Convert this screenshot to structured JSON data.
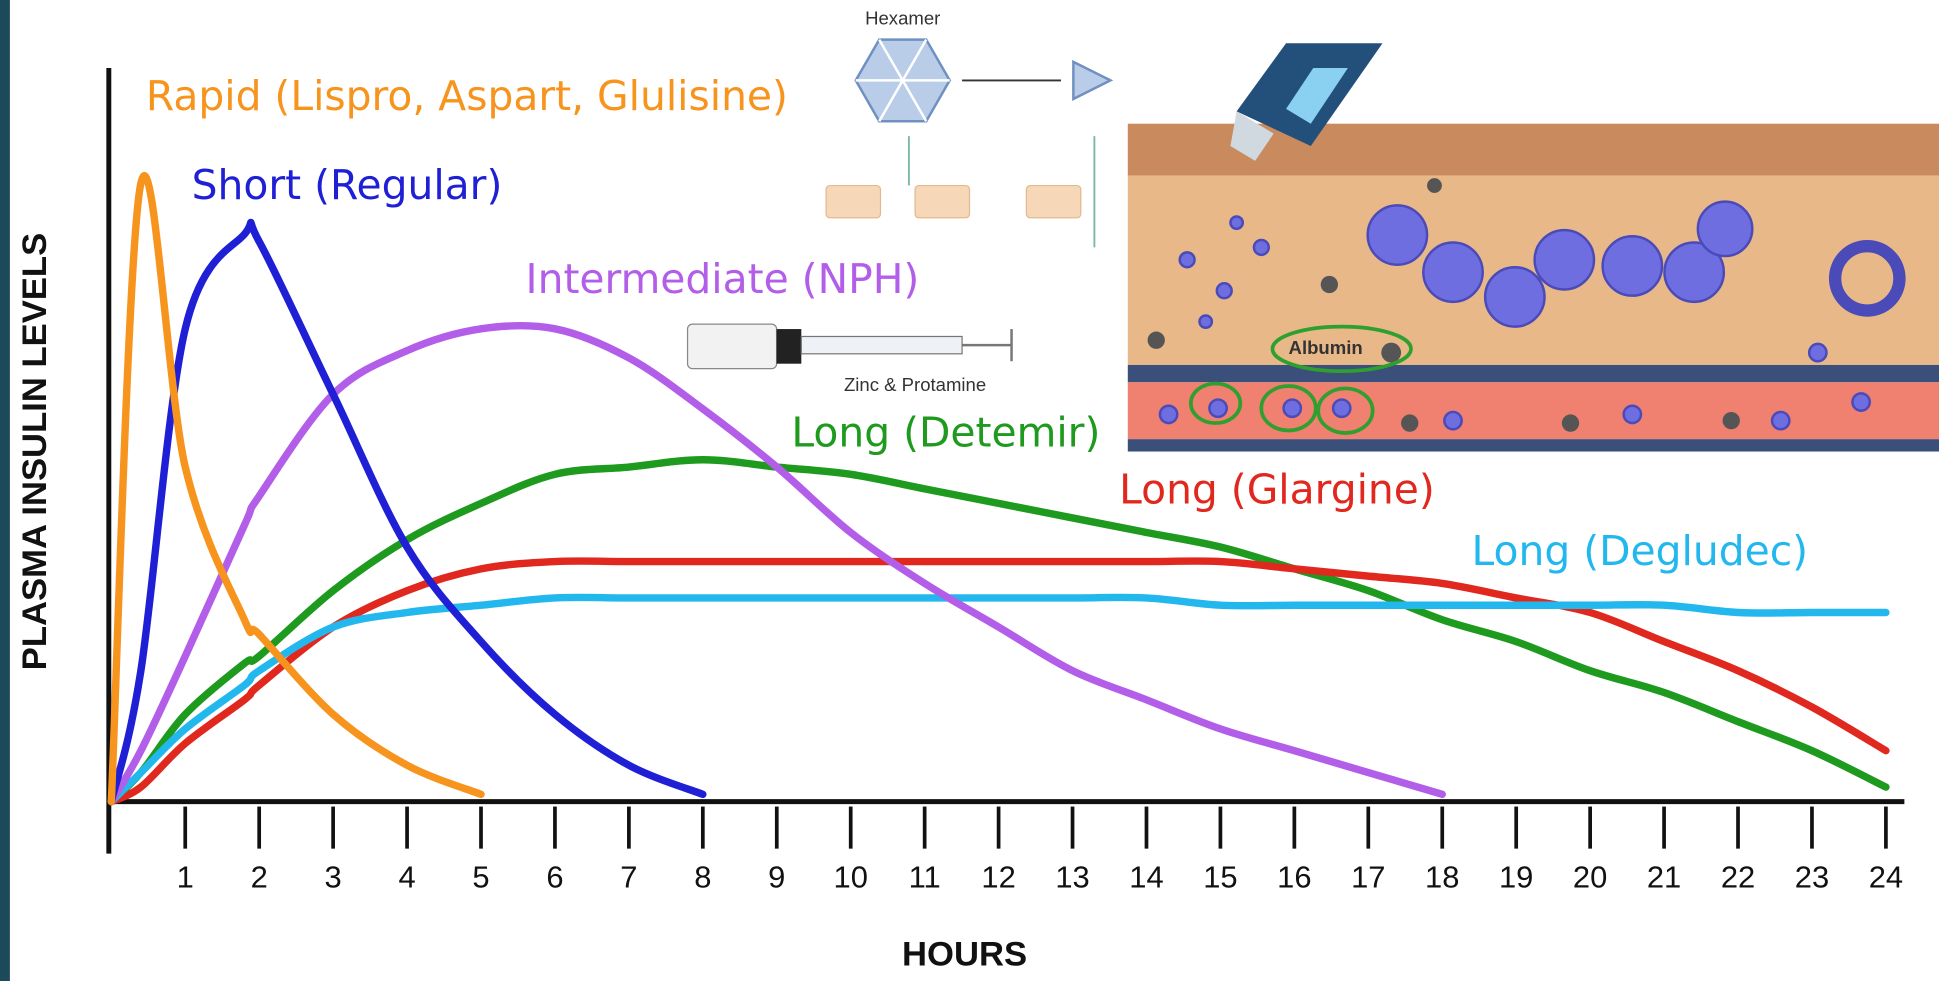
{
  "chart_data": {
    "type": "line",
    "x_label": "HOURS",
    "y_label": "PLASMA INSULIN LEVELS",
    "x": [
      0,
      0.4,
      1,
      1.8,
      2,
      3,
      4,
      5,
      6,
      7,
      8,
      9,
      10,
      11,
      12,
      13,
      14,
      15,
      16,
      17,
      18,
      19,
      20,
      21,
      22,
      23,
      24
    ],
    "series": [
      {
        "name": "Rapid (Lispro, Aspart, Glulisine)",
        "color": "#f7941d",
        "values": [
          0,
          85,
          46,
          25,
          23,
          12,
          5,
          1,
          null,
          null,
          null,
          null,
          null,
          null,
          null,
          null,
          null,
          null,
          null,
          null,
          null,
          null,
          null,
          null,
          null,
          null,
          null
        ]
      },
      {
        "name": "Short (Regular)",
        "color": "#1f1fd6",
        "values": [
          0,
          18,
          65,
          78,
          77,
          56,
          35,
          22,
          12,
          5,
          1,
          null,
          null,
          null,
          null,
          null,
          null,
          null,
          null,
          null,
          null,
          null,
          null,
          null,
          null,
          null,
          null
        ]
      },
      {
        "name": "Intermediate (NPH)",
        "color": "#b35ee8",
        "values": [
          0,
          7,
          20,
          38,
          42,
          56,
          62,
          65,
          65,
          61,
          54,
          46,
          37,
          30,
          24,
          18,
          14,
          10,
          7,
          4,
          1,
          null,
          null,
          null,
          null,
          null,
          null
        ]
      },
      {
        "name": "Long (Detemir)",
        "color": "#1e9a1e",
        "values": [
          0,
          4,
          12,
          19,
          20,
          29,
          36,
          41,
          45,
          46,
          47,
          46,
          45,
          43,
          41,
          39,
          37,
          35,
          32,
          29,
          25,
          22,
          18,
          15,
          11,
          7,
          2
        ]
      },
      {
        "name": "Long (Glargine)",
        "color": "#e0281e",
        "values": [
          0,
          2,
          8,
          14,
          16,
          24,
          29,
          32,
          33,
          33,
          33,
          33,
          33,
          33,
          33,
          33,
          33,
          33,
          32,
          31,
          30,
          28,
          26,
          22,
          18,
          13,
          7
        ]
      },
      {
        "name": "Long (Degludec)",
        "color": "#22b8ee",
        "values": [
          0,
          4,
          10,
          16,
          18,
          24,
          26,
          27,
          28,
          28,
          28,
          28,
          28,
          28,
          28,
          28,
          28,
          27,
          27,
          27,
          27,
          27,
          27,
          27,
          26,
          26,
          26
        ]
      }
    ],
    "xlim": [
      0,
      24.3
    ],
    "ylim": [
      0,
      100
    ],
    "xticks": [
      1,
      2,
      3,
      4,
      5,
      6,
      7,
      8,
      9,
      10,
      11,
      12,
      13,
      14,
      15,
      16,
      17,
      18,
      19,
      20,
      21,
      22,
      23,
      24
    ],
    "annotations": [
      "Hexamer",
      "Zinc & Protamine",
      "Albumin"
    ]
  }
}
